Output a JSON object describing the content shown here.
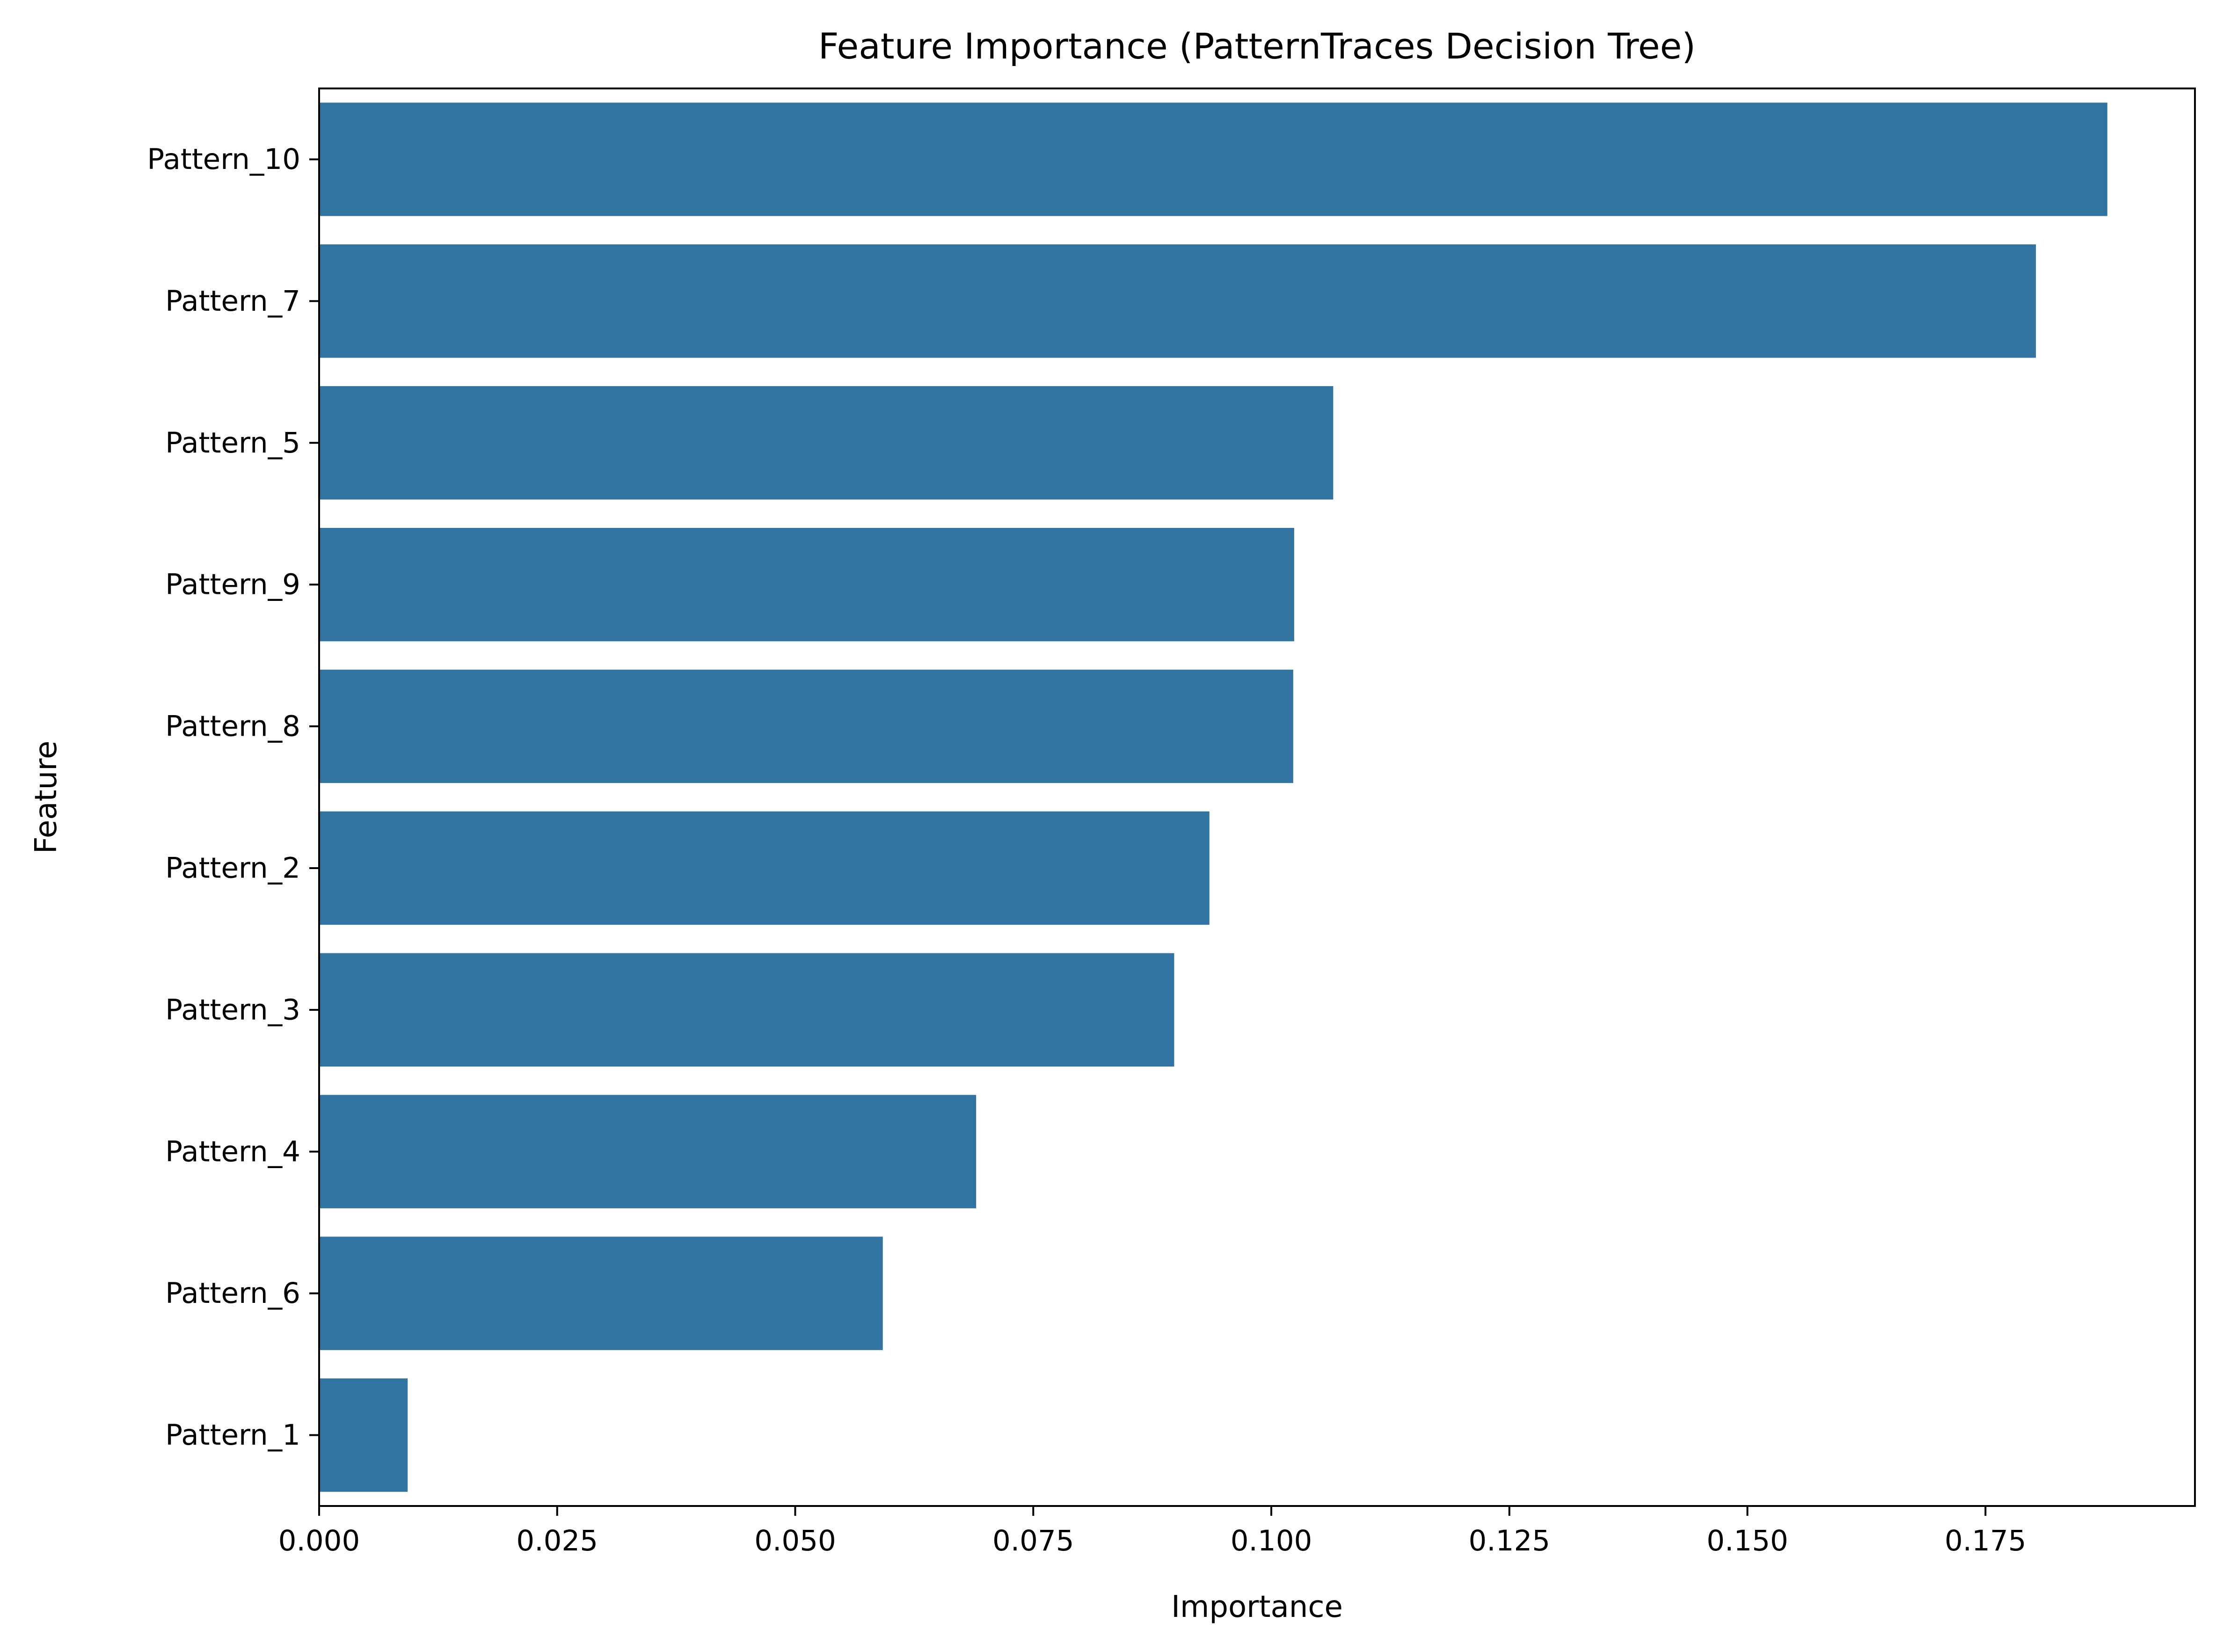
{
  "chart_data": {
    "type": "bar",
    "orientation": "horizontal",
    "title": "Feature Importance (PatternTraces Decision Tree)",
    "xlabel": "Importance",
    "ylabel": "Feature",
    "categories": [
      "Pattern_10",
      "Pattern_7",
      "Pattern_5",
      "Pattern_9",
      "Pattern_8",
      "Pattern_2",
      "Pattern_3",
      "Pattern_4",
      "Pattern_6",
      "Pattern_1"
    ],
    "values": [
      0.1878,
      0.1803,
      0.1065,
      0.1024,
      0.1023,
      0.0935,
      0.0898,
      0.069,
      0.0592,
      0.0093
    ],
    "xlim": [
      0,
      0.197
    ],
    "xticks": [
      0.0,
      0.025,
      0.05,
      0.075,
      0.1,
      0.125,
      0.15,
      0.175
    ],
    "xtick_labels": [
      "0.000",
      "0.025",
      "0.050",
      "0.075",
      "0.100",
      "0.125",
      "0.150",
      "0.175"
    ],
    "bar_color": "#3274a1",
    "grid": false,
    "legend": "none"
  }
}
